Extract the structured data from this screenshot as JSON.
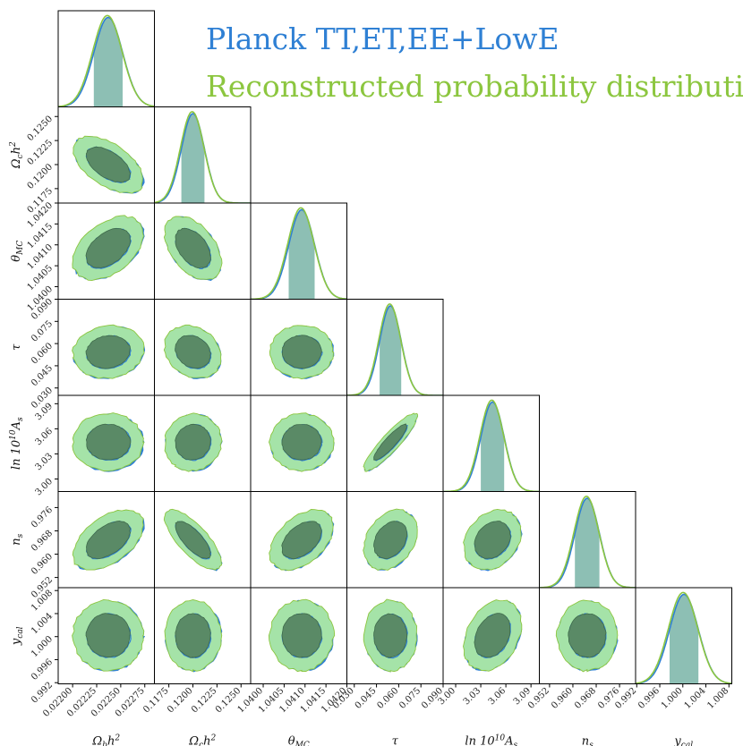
{
  "legend": {
    "blue_label": "Planck TT,ET,EE+LowE",
    "green_label": "Reconstructed probability distribution",
    "blue_color": "#2f80d4",
    "green_color": "#8cc63f"
  },
  "chart_data": {
    "type": "corner",
    "series": [
      {
        "name": "Planck TT,ET,EE+LowE",
        "color": "#2f80d4"
      },
      {
        "name": "Reconstructed probability distribution",
        "color": "#8cc63f"
      }
    ],
    "parameters": [
      {
        "key": "omegabh2",
        "label": "Ωbh²",
        "base": "Ω",
        "sub": "b",
        "tail": "h",
        "sup": "2",
        "mean": 0.02237,
        "sigma": 0.00015,
        "range": [
          0.02185,
          0.02285
        ],
        "ticks": [
          "0.02200",
          "0.02225",
          "0.02250",
          "0.02275"
        ],
        "tickvals": [
          0.022,
          0.02225,
          0.0225,
          0.02275
        ]
      },
      {
        "key": "omegach2",
        "label": "Ωch²",
        "base": "Ω",
        "sub": "c",
        "tail": "h",
        "sup": "2",
        "mean": 0.12,
        "sigma": 0.0012,
        "range": [
          0.116,
          0.126
        ],
        "ticks": [
          "0.1175",
          "0.1200",
          "0.1225",
          "0.1250"
        ],
        "tickvals": [
          0.1175,
          0.12,
          0.1225,
          0.125
        ]
      },
      {
        "key": "thetaMC",
        "label": "θMC",
        "base": "θ",
        "sub": "MC",
        "tail": "",
        "sup": "",
        "mean": 1.04092,
        "sigma": 0.00031,
        "range": [
          1.0397,
          1.042
        ],
        "ticks": [
          "1.0400",
          "1.0405",
          "1.0410",
          "1.0415",
          "1.0420"
        ],
        "tickvals": [
          1.04,
          1.0405,
          1.041,
          1.0415,
          1.042
        ]
      },
      {
        "key": "tau",
        "label": "τ",
        "base": "τ",
        "sub": "",
        "tail": "",
        "sup": "",
        "mean": 0.0544,
        "sigma": 0.0073,
        "range": [
          0.025,
          0.09
        ],
        "ticks": [
          "0.030",
          "0.045",
          "0.060",
          "0.075",
          "0.090"
        ],
        "tickvals": [
          0.03,
          0.045,
          0.06,
          0.075,
          0.09
        ]
      },
      {
        "key": "lnAs",
        "label": "ln 10¹⁰As",
        "base": "ln 10",
        "sub": "s",
        "tail": "",
        "sup": "10",
        "after": "A",
        "mean": 3.044,
        "sigma": 0.014,
        "range": [
          2.985,
          3.1
        ],
        "ticks": [
          "3.00",
          "3.03",
          "3.06",
          "3.09"
        ],
        "tickvals": [
          3.0,
          3.03,
          3.06,
          3.09
        ]
      },
      {
        "key": "ns",
        "label": "ns",
        "base": "n",
        "sub": "s",
        "tail": "",
        "sup": "",
        "mean": 0.9649,
        "sigma": 0.0042,
        "range": [
          0.9485,
          0.9815
        ],
        "ticks": [
          "0.952",
          "0.960",
          "0.968",
          "0.976"
        ],
        "tickvals": [
          0.952,
          0.96,
          0.968,
          0.976
        ]
      },
      {
        "key": "ycal",
        "label": "ycal",
        "base": "y",
        "sub": "cal",
        "tail": "",
        "sup": "",
        "mean": 1.0002,
        "sigma": 0.0025,
        "range": [
          0.9918,
          1.0085
        ],
        "ticks": [
          "0.992",
          "0.996",
          "1.000",
          "1.004",
          "1.008"
        ],
        "tickvals": [
          0.992,
          0.996,
          1.0,
          1.004,
          1.008
        ]
      }
    ],
    "correlations": {
      "omegach2|omegabh2": -0.55,
      "thetaMC|omegabh2": 0.45,
      "thetaMC|omegach2": -0.45,
      "tau|omegabh2": 0.1,
      "tau|omegach2": -0.2,
      "tau|thetaMC": 0.0,
      "lnAs|omegabh2": 0.0,
      "lnAs|omegach2": 0.05,
      "lnAs|thetaMC": 0.0,
      "lnAs|tau": 0.9,
      "ns|omegabh2": 0.5,
      "ns|omegach2": -0.75,
      "ns|thetaMC": 0.45,
      "ns|tau": 0.3,
      "ns|lnAs": 0.25,
      "ycal|omegabh2": 0.0,
      "ycal|omegach2": 0.0,
      "ycal|thetaMC": 0.0,
      "ycal|tau": 0.0,
      "ycal|lnAs": 0.3,
      "ycal|ns": 0.0
    },
    "contours": {
      "inner_fill": "#5a8a66",
      "outer_fill": "#a5e3a8",
      "levels": [
        "68%",
        "95%"
      ]
    },
    "marginal_fill": "#8dbfb4",
    "grid": false,
    "legend_position": "top-right"
  }
}
